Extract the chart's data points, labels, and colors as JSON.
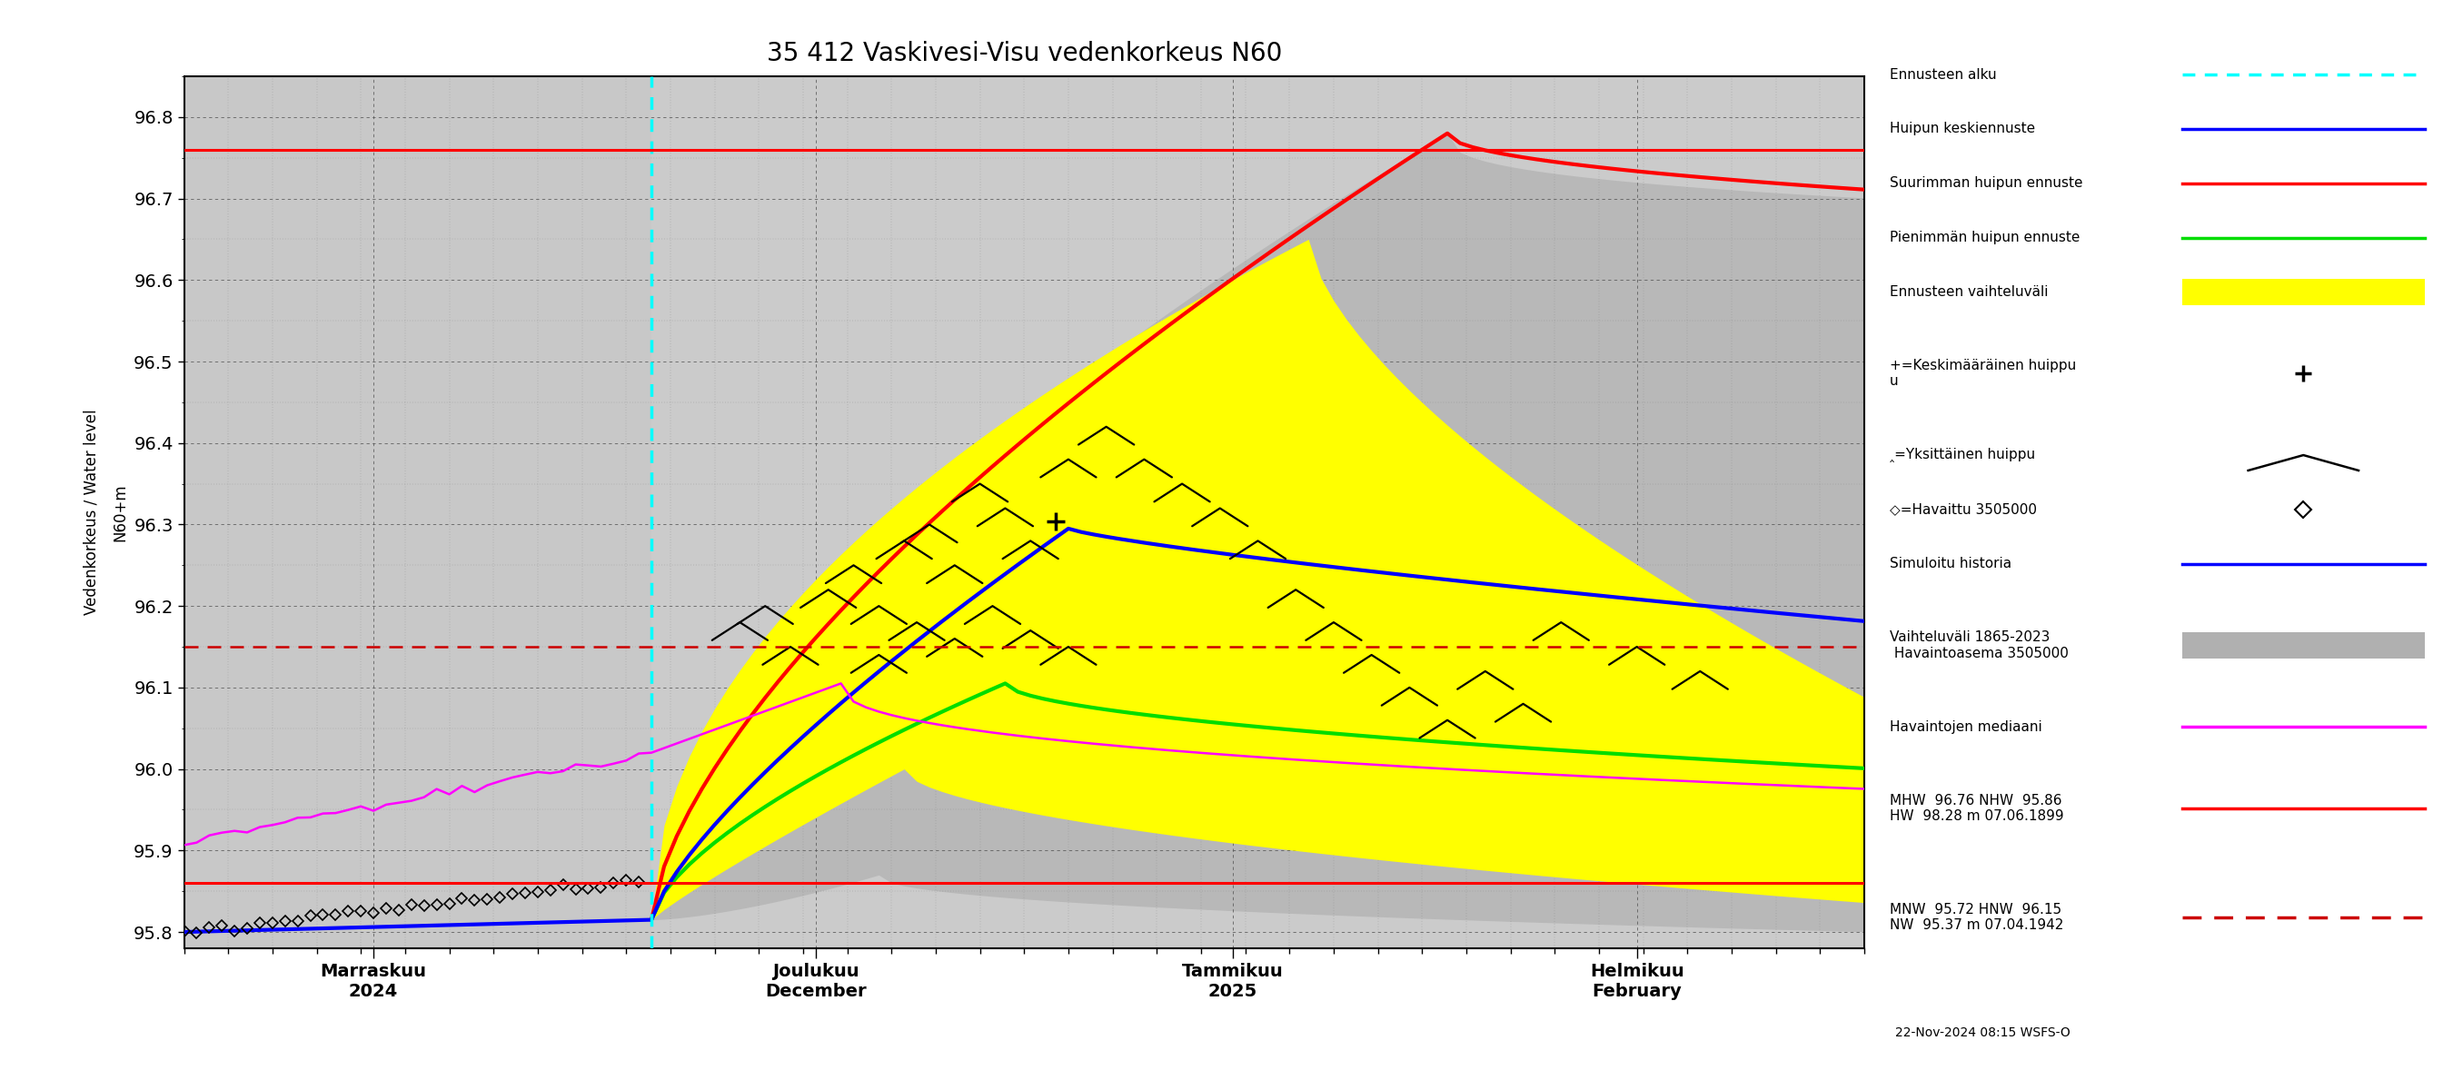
{
  "title": "35 412 Vaskivesi-Visu vedenkorkeus N60",
  "ylim": [
    95.78,
    96.85
  ],
  "yticks": [
    95.8,
    95.9,
    96.0,
    96.1,
    96.2,
    96.3,
    96.4,
    96.5,
    96.6,
    96.7,
    96.8
  ],
  "bg_color": "#c8c8c8",
  "red_hw_line": 96.76,
  "red_lw_line": 95.86,
  "red_dashed_line": 96.15,
  "cyan_vline_day": 37,
  "total_days": 134,
  "month_ticks": [
    15,
    50,
    83,
    115
  ],
  "month_labels": [
    "Marraskuu\n2024",
    "Joulukuu\nDecember",
    "Tammikuu\n2025",
    "Helmikuu\nFebruary"
  ],
  "timestamp": "22-Nov-2024 08:15 WSFS-O"
}
